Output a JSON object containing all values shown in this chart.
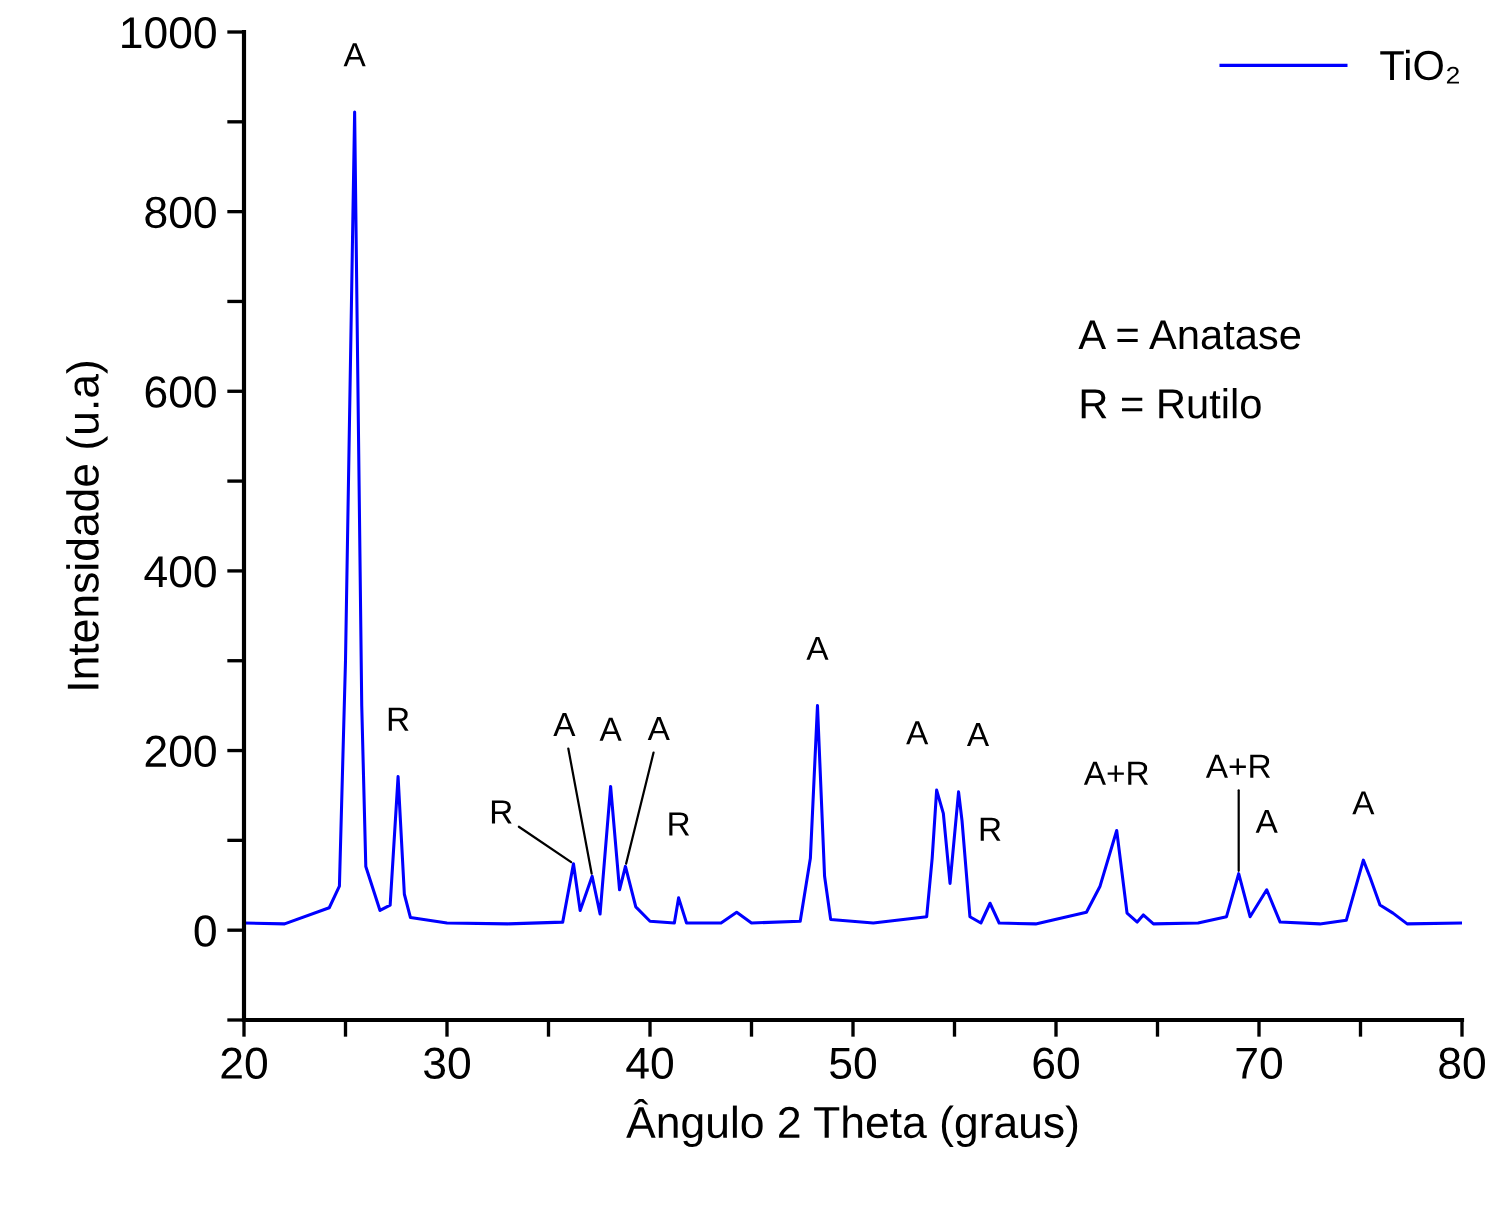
{
  "chart_data": {
    "type": "line",
    "xlabel": "Ângulo 2 Theta (graus)",
    "ylabel": "Intensidade (u.a)",
    "xlim": [
      20,
      80
    ],
    "ylim": [
      -100,
      1000
    ],
    "xticks": [
      20,
      {
        "value": 25,
        "label": null
      },
      30,
      {
        "value": 35,
        "label": null
      },
      40,
      {
        "value": 45,
        "label": null
      },
      50,
      {
        "value": 55,
        "label": null
      },
      60,
      {
        "value": 65,
        "label": null
      },
      70,
      {
        "value": 75,
        "label": null
      },
      80
    ],
    "yticks": [
      {
        "value": -100,
        "label": null
      },
      0,
      {
        "value": 100,
        "label": null
      },
      200,
      {
        "value": 300,
        "label": null
      },
      400,
      {
        "value": 500,
        "label": null
      },
      600,
      {
        "value": 700,
        "label": null
      },
      800,
      {
        "value": 900,
        "label": null
      },
      1000
    ],
    "grid": false,
    "legend": "top right",
    "marker": "none",
    "line_style": "solid",
    "series": [
      {
        "name": "TiO₂",
        "color": "#0000ff",
        "x": [
          20,
          22,
          24.2,
          24.7,
          25.0,
          25.45,
          25.8,
          26.0,
          26.7,
          27.2,
          27.59,
          27.9,
          28.2,
          30,
          33,
          35.7,
          36.23,
          36.56,
          37.15,
          37.54,
          38.06,
          38.5,
          38.79,
          39.3,
          40,
          41.2,
          41.41,
          41.8,
          43.5,
          44.27,
          45,
          47.4,
          47.9,
          48.25,
          48.6,
          48.9,
          51,
          53.63,
          53.9,
          54.12,
          54.45,
          54.78,
          55.2,
          55.37,
          55.76,
          56.3,
          56.75,
          57.2,
          59,
          61.5,
          62.17,
          62.99,
          63.5,
          64.0,
          64.3,
          64.8,
          67,
          68.4,
          69.0,
          69.56,
          70.38,
          71.04,
          73,
          74.3,
          75.14,
          75.47,
          75.96,
          76.6,
          77.3,
          80
        ],
        "values": [
          8,
          7,
          25,
          49,
          300,
          911,
          250,
          71,
          22,
          28,
          171,
          40,
          14,
          8,
          7,
          9,
          74,
          22,
          60,
          18,
          160,
          45,
          71,
          26,
          10,
          8,
          36,
          8,
          8,
          20,
          8,
          10,
          80,
          250,
          60,
          12,
          8,
          15,
          80,
          156,
          130,
          52,
          154,
          122,
          15,
          8,
          30,
          8,
          7,
          20,
          49,
          111,
          19,
          9,
          17,
          7,
          8,
          15,
          63,
          15,
          45,
          9,
          7,
          11,
          78,
          59,
          28,
          19,
          7,
          8
        ]
      }
    ],
    "annotations": [
      {
        "text": "A",
        "x": 25.45,
        "y": 911
      },
      {
        "text": "R",
        "x": 27.59,
        "y": 171
      },
      {
        "text": "R",
        "x": 36.23,
        "y": 74
      },
      {
        "text": "A",
        "x": 37.15,
        "y": 60
      },
      {
        "text": "A",
        "x": 38.06,
        "y": 160
      },
      {
        "text": "A",
        "x": 38.79,
        "y": 71
      },
      {
        "text": "R",
        "x": 41.41,
        "y": 36
      },
      {
        "text": "A",
        "x": 48.25,
        "y": 250
      },
      {
        "text": "A",
        "x": 54.12,
        "y": 156
      },
      {
        "text": "A",
        "x": 55.2,
        "y": 154
      },
      {
        "text": "R",
        "x": 56.75,
        "y": 30
      },
      {
        "text": "A+R",
        "x": 62.99,
        "y": 111
      },
      {
        "text": "A+R",
        "x": 69.0,
        "y": 63
      },
      {
        "text": "A",
        "x": 70.38,
        "y": 45
      },
      {
        "text": "A",
        "x": 75.14,
        "y": 78
      },
      "A = Anatase",
      "R = Rutilo"
    ]
  }
}
